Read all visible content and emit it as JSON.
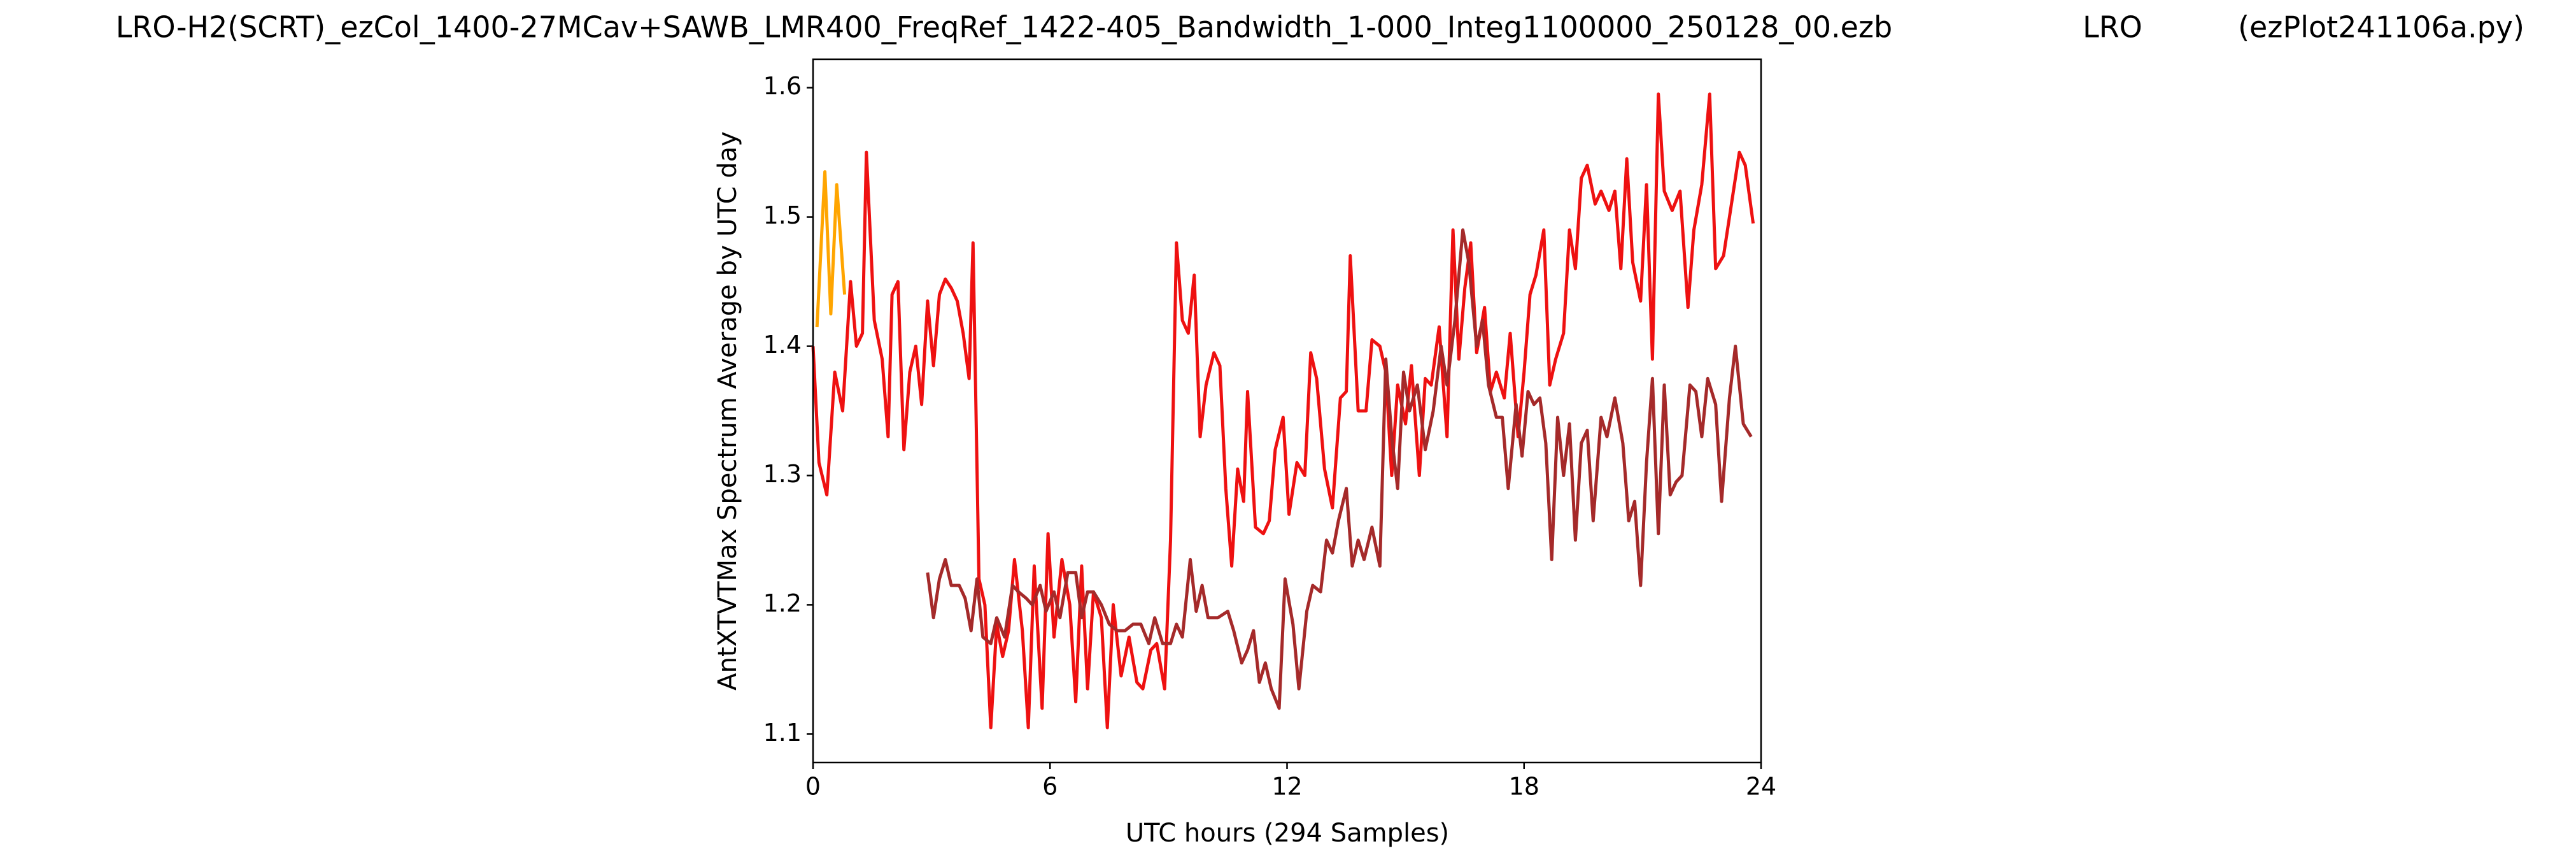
{
  "chart_data": {
    "type": "line",
    "title": [
      "LRO-H2(SCRT)_ezCol_1400-27MCav+SAWB_LMR400_FreqRef_1422-405_Bandwidth_1-000_Integ1100000_250128_00.ezb",
      "LRO",
      "(ezPlot241106a.py)"
    ],
    "x_label": "UTC hours  (294 Samples)",
    "y_label": "AntXTVTMax Spectrum Average by UTC day",
    "xlim": [
      0,
      24
    ],
    "xticks": [
      0,
      6,
      12,
      18,
      24
    ],
    "ylim": [
      1.078,
      1.622
    ],
    "yticks": [
      1.1,
      1.2,
      1.3,
      1.4,
      1.5,
      1.6
    ],
    "grid": false,
    "series": [
      {
        "color": "#ee1111",
        "x": [
          0,
          0.15,
          0.35,
          0.55,
          0.75,
          0.95,
          1.1,
          1.25,
          1.35,
          1.55,
          1.75,
          1.9,
          2.0,
          2.15,
          2.3,
          2.45,
          2.6,
          2.75,
          2.9,
          3.05,
          3.2,
          3.35,
          3.5,
          3.65,
          3.8,
          3.95,
          4.05,
          4.2,
          4.35,
          4.5,
          4.65,
          4.8,
          4.95,
          5.1,
          5.3,
          5.45,
          5.6,
          5.8,
          5.95,
          6.1,
          6.3,
          6.5,
          6.65,
          6.8,
          6.95,
          7.1,
          7.3,
          7.45,
          7.6,
          7.8,
          8.0,
          8.2,
          8.35,
          8.55,
          8.7,
          8.9,
          9.05,
          9.2,
          9.35,
          9.5,
          9.65,
          9.8,
          9.95,
          10.15,
          10.3,
          10.45,
          10.6,
          10.75,
          10.9,
          11.0,
          11.2,
          11.4,
          11.55,
          11.7,
          11.9,
          12.05,
          12.25,
          12.45,
          12.6,
          12.75,
          12.95,
          13.15,
          13.35,
          13.5,
          13.6,
          13.8,
          14.0,
          14.15,
          14.35,
          14.5,
          14.65,
          14.8,
          15.0,
          15.15,
          15.35,
          15.5,
          15.65,
          15.85,
          16.05,
          16.2,
          16.35,
          16.5,
          16.65,
          16.8,
          17.0,
          17.15,
          17.3,
          17.5,
          17.65,
          17.85,
          18.0,
          18.15,
          18.3,
          18.5,
          18.65,
          18.8,
          19.0,
          19.15,
          19.3,
          19.45,
          19.6,
          19.8,
          19.95,
          20.15,
          20.3,
          20.45,
          20.6,
          20.75,
          20.95,
          21.1,
          21.25,
          21.4,
          21.55,
          21.75,
          21.95,
          22.15,
          22.3,
          22.5,
          22.7,
          22.85,
          23.05,
          23.25,
          23.45,
          23.6,
          23.8
        ],
        "values": [
          1.4,
          1.31,
          1.285,
          1.38,
          1.35,
          1.45,
          1.4,
          1.41,
          1.55,
          1.42,
          1.39,
          1.33,
          1.44,
          1.45,
          1.32,
          1.38,
          1.4,
          1.355,
          1.435,
          1.385,
          1.44,
          1.452,
          1.445,
          1.435,
          1.41,
          1.375,
          1.48,
          1.22,
          1.2,
          1.105,
          1.185,
          1.16,
          1.18,
          1.235,
          1.18,
          1.105,
          1.23,
          1.12,
          1.255,
          1.175,
          1.235,
          1.2,
          1.125,
          1.23,
          1.135,
          1.21,
          1.19,
          1.105,
          1.2,
          1.145,
          1.175,
          1.14,
          1.135,
          1.165,
          1.17,
          1.135,
          1.25,
          1.48,
          1.42,
          1.41,
          1.455,
          1.33,
          1.37,
          1.395,
          1.385,
          1.29,
          1.23,
          1.305,
          1.28,
          1.365,
          1.26,
          1.255,
          1.265,
          1.32,
          1.345,
          1.27,
          1.31,
          1.3,
          1.395,
          1.375,
          1.305,
          1.275,
          1.36,
          1.365,
          1.47,
          1.35,
          1.35,
          1.405,
          1.4,
          1.38,
          1.3,
          1.37,
          1.34,
          1.385,
          1.3,
          1.375,
          1.37,
          1.415,
          1.33,
          1.49,
          1.39,
          1.445,
          1.48,
          1.395,
          1.43,
          1.365,
          1.38,
          1.36,
          1.41,
          1.33,
          1.38,
          1.44,
          1.455,
          1.49,
          1.37,
          1.39,
          1.41,
          1.49,
          1.46,
          1.53,
          1.54,
          1.51,
          1.52,
          1.505,
          1.52,
          1.46,
          1.545,
          1.465,
          1.435,
          1.525,
          1.39,
          1.595,
          1.52,
          1.505,
          1.52,
          1.43,
          1.49,
          1.525,
          1.595,
          1.46,
          1.47,
          1.51,
          1.55,
          1.54,
          1.495
        ]
      },
      {
        "color": "#a52a2a",
        "x": [
          2.9,
          3.05,
          3.2,
          3.35,
          3.5,
          3.7,
          3.85,
          4.0,
          4.15,
          4.3,
          4.5,
          4.65,
          4.85,
          5.05,
          5.2,
          5.4,
          5.55,
          5.75,
          5.9,
          6.1,
          6.25,
          6.45,
          6.65,
          6.8,
          6.95,
          7.1,
          7.3,
          7.5,
          7.7,
          7.9,
          8.1,
          8.3,
          8.5,
          8.65,
          8.85,
          9.05,
          9.2,
          9.35,
          9.55,
          9.7,
          9.85,
          10.0,
          10.25,
          10.5,
          10.65,
          10.85,
          11.0,
          11.15,
          11.3,
          11.45,
          11.6,
          11.8,
          11.95,
          12.15,
          12.3,
          12.5,
          12.65,
          12.85,
          13.0,
          13.15,
          13.3,
          13.5,
          13.65,
          13.8,
          13.95,
          14.15,
          14.35,
          14.5,
          14.65,
          14.8,
          14.95,
          15.1,
          15.3,
          15.5,
          15.7,
          15.9,
          16.05,
          16.25,
          16.45,
          16.6,
          16.8,
          16.95,
          17.1,
          17.3,
          17.45,
          17.6,
          17.8,
          17.95,
          18.1,
          18.25,
          18.4,
          18.55,
          18.7,
          18.85,
          19.0,
          19.15,
          19.3,
          19.45,
          19.6,
          19.75,
          19.95,
          20.1,
          20.3,
          20.5,
          20.65,
          20.8,
          20.95,
          21.1,
          21.25,
          21.4,
          21.55,
          21.7,
          21.85,
          22.0,
          22.2,
          22.35,
          22.5,
          22.65,
          22.85,
          23.0,
          23.2,
          23.35,
          23.55,
          23.75
        ],
        "values": [
          1.225,
          1.19,
          1.22,
          1.235,
          1.215,
          1.215,
          1.205,
          1.18,
          1.22,
          1.175,
          1.17,
          1.19,
          1.175,
          1.215,
          1.21,
          1.205,
          1.2,
          1.215,
          1.195,
          1.21,
          1.19,
          1.225,
          1.225,
          1.19,
          1.21,
          1.21,
          1.2,
          1.185,
          1.18,
          1.18,
          1.185,
          1.185,
          1.17,
          1.19,
          1.17,
          1.17,
          1.185,
          1.175,
          1.235,
          1.195,
          1.215,
          1.19,
          1.19,
          1.195,
          1.18,
          1.155,
          1.165,
          1.18,
          1.14,
          1.155,
          1.135,
          1.12,
          1.22,
          1.185,
          1.135,
          1.195,
          1.215,
          1.21,
          1.25,
          1.24,
          1.265,
          1.29,
          1.23,
          1.25,
          1.235,
          1.26,
          1.23,
          1.39,
          1.33,
          1.29,
          1.38,
          1.35,
          1.37,
          1.32,
          1.35,
          1.4,
          1.37,
          1.42,
          1.49,
          1.465,
          1.4,
          1.42,
          1.37,
          1.345,
          1.345,
          1.29,
          1.355,
          1.315,
          1.365,
          1.355,
          1.36,
          1.325,
          1.235,
          1.345,
          1.3,
          1.34,
          1.25,
          1.325,
          1.335,
          1.265,
          1.345,
          1.33,
          1.36,
          1.325,
          1.265,
          1.28,
          1.215,
          1.31,
          1.375,
          1.255,
          1.37,
          1.285,
          1.295,
          1.3,
          1.37,
          1.365,
          1.33,
          1.375,
          1.355,
          1.28,
          1.36,
          1.4,
          1.34,
          1.33
        ]
      },
      {
        "color": "#ffa500",
        "x": [
          0.1,
          0.3,
          0.45,
          0.6,
          0.8
        ],
        "values": [
          1.415,
          1.535,
          1.425,
          1.525,
          1.44
        ]
      }
    ]
  }
}
